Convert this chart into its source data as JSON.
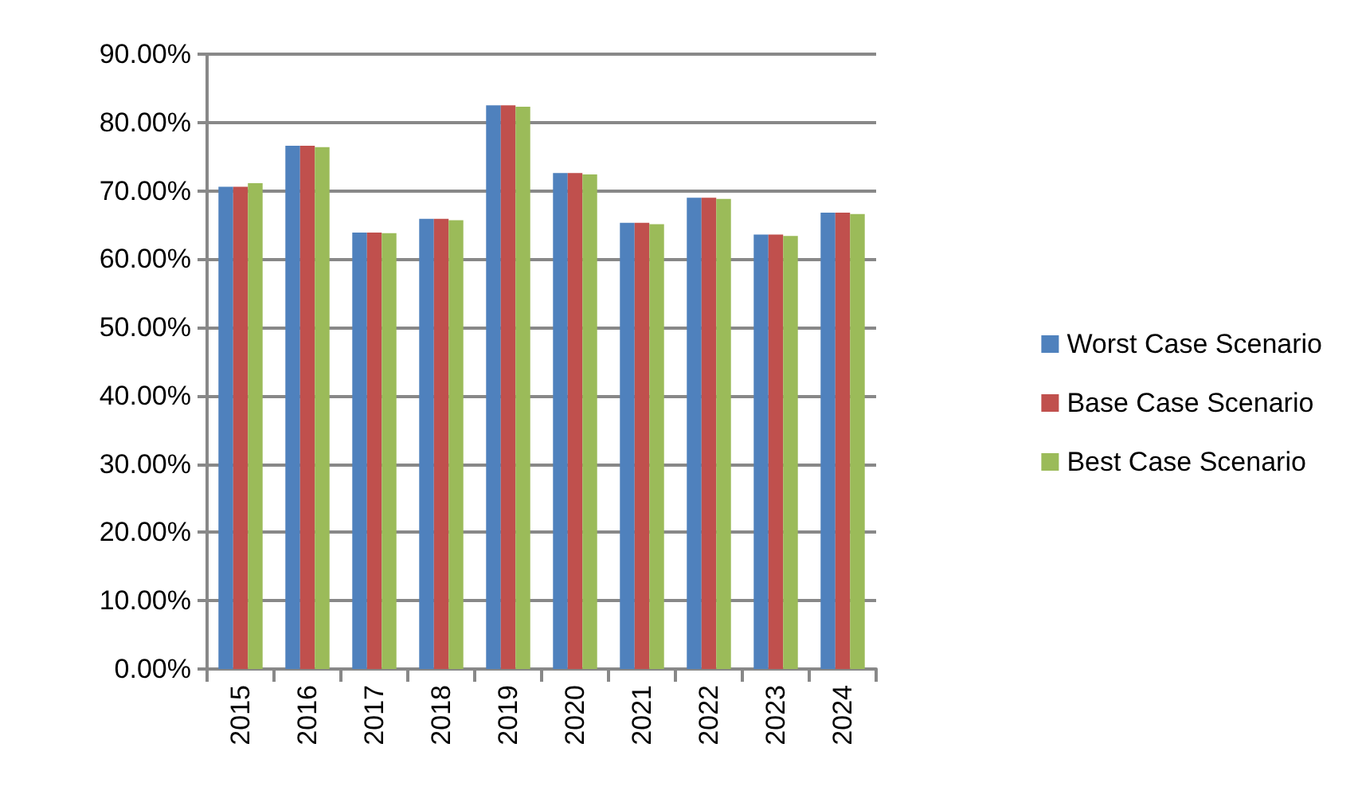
{
  "chart_data": {
    "type": "bar",
    "categories": [
      "2015",
      "2016",
      "2017",
      "2018",
      "2019",
      "2020",
      "2021",
      "2022",
      "2023",
      "2024"
    ],
    "series": [
      {
        "name": "Worst Case Scenario",
        "color": "#4f81bd",
        "values": [
          70.6,
          76.6,
          63.9,
          65.9,
          82.5,
          72.6,
          65.3,
          69.0,
          63.6,
          66.8
        ]
      },
      {
        "name": "Base Case Scenario",
        "color": "#c0504d",
        "values": [
          70.6,
          76.6,
          63.9,
          65.9,
          82.5,
          72.6,
          65.3,
          69.0,
          63.6,
          66.8
        ]
      },
      {
        "name": "Best Case Scenario",
        "color": "#9bbb59",
        "values": [
          71.1,
          76.4,
          63.8,
          65.7,
          82.3,
          72.4,
          65.1,
          68.8,
          63.4,
          66.6
        ]
      }
    ],
    "ylim": [
      0,
      90
    ],
    "yticks": [
      {
        "value": 0,
        "label": "0.00%"
      },
      {
        "value": 10,
        "label": "10.00%"
      },
      {
        "value": 20,
        "label": "20.00%"
      },
      {
        "value": 30,
        "label": "30.00%"
      },
      {
        "value": 40,
        "label": "40.00%"
      },
      {
        "value": 50,
        "label": "50.00%"
      },
      {
        "value": 60,
        "label": "60.00%"
      },
      {
        "value": 70,
        "label": "70.00%"
      },
      {
        "value": 80,
        "label": "80.00%"
      },
      {
        "value": 90,
        "label": "90.00%"
      }
    ],
    "grid": "y",
    "legend": "right"
  }
}
